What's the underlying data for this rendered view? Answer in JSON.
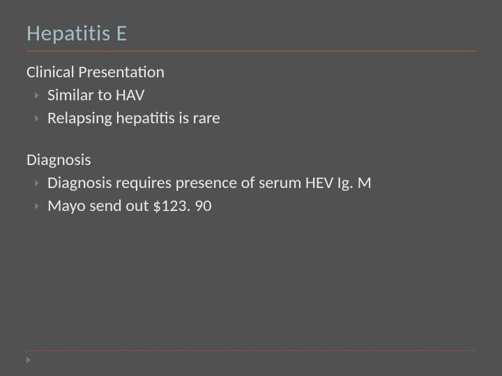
{
  "slide": {
    "title": "Hepatitis E",
    "background_color": "#515151",
    "title_color": "#a4bec6",
    "text_color": "#e9e9e9",
    "divider_color": "#b9542c",
    "bullet_color": "#6e7a7c",
    "title_fontsize": 32,
    "body_fontsize": 24,
    "sections": [
      {
        "heading": "Clinical Presentation",
        "bullets": [
          "Similar to HAV",
          "Relapsing hepatitis is rare"
        ]
      },
      {
        "heading": "Diagnosis",
        "bullets": [
          "Diagnosis requires presence of serum HEV Ig. M",
          "Mayo send out $123. 90"
        ]
      }
    ]
  }
}
